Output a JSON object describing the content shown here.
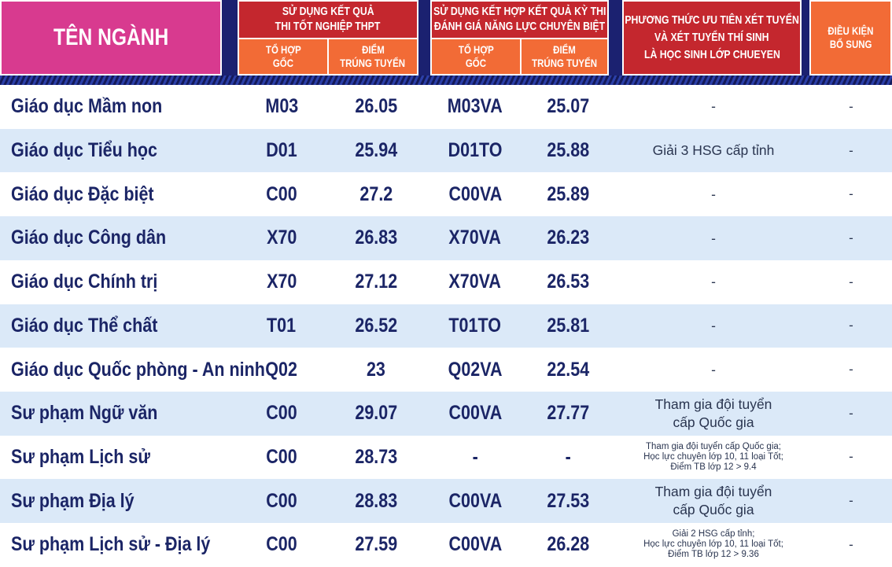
{
  "header": {
    "name_col": "TÊN NGÀNH",
    "group1": {
      "title": [
        "SỬ DỤNG KẾT QUẢ",
        "THI TỐT NGHIỆP THPT"
      ],
      "code": [
        "TỔ HỢP",
        "GỐC"
      ],
      "score": [
        "ĐIỂM",
        "TRÚNG TUYỂN"
      ]
    },
    "group2": {
      "title": [
        "SỬ DỤNG KẾT HỢP KẾT QUẢ KỲ THI",
        "ĐÁNH GIÁ NĂNG LỰC CHUYÊN BIỆT"
      ],
      "code": [
        "TỔ HỢP",
        "GỐC"
      ],
      "score": [
        "ĐIỂM",
        "TRÚNG TUYỂN"
      ]
    },
    "priority": [
      "PHƯƠNG THỨC ƯU TIÊN XÉT TUYỂN",
      "VÀ XÉT TUYỂN THÍ SINH",
      "LÀ HỌC SINH LỚP CHUEYEN"
    ],
    "extra": [
      "ĐIỀU KIỆN",
      "BỔ SUNG"
    ]
  },
  "table": {
    "rows": [
      {
        "name": "Giáo dục Mầm non",
        "code1": "M03",
        "score1": "26.05",
        "code2": "M03VA",
        "score2": "25.07",
        "note": [
          "-"
        ],
        "extra": "-"
      },
      {
        "name": "Giáo dục Tiểu học",
        "code1": "D01",
        "score1": "25.94",
        "code2": "D01TO",
        "score2": "25.88",
        "note": [
          "Giải 3 HSG cấp tỉnh"
        ],
        "extra": "-"
      },
      {
        "name": "Giáo dục Đặc biệt",
        "code1": "C00",
        "score1": "27.2",
        "code2": "C00VA",
        "score2": "25.89",
        "note": [
          "-"
        ],
        "extra": "-"
      },
      {
        "name": "Giáo dục Công dân",
        "code1": "X70",
        "score1": "26.83",
        "code2": "X70VA",
        "score2": "26.23",
        "note": [
          "-"
        ],
        "extra": "-"
      },
      {
        "name": "Giáo dục Chính trị",
        "code1": "X70",
        "score1": "27.12",
        "code2": "X70VA",
        "score2": "26.53",
        "note": [
          "-"
        ],
        "extra": "-"
      },
      {
        "name": "Giáo dục Thể chất",
        "code1": "T01",
        "score1": "26.52",
        "code2": "T01TO",
        "score2": "25.81",
        "note": [
          "-"
        ],
        "extra": "-"
      },
      {
        "name": "Giáo dục Quốc phòng - An ninh",
        "code1": "Q02",
        "score1": "23",
        "code2": "Q02VA",
        "score2": "22.54",
        "note": [
          "-"
        ],
        "extra": "-"
      },
      {
        "name": "Sư phạm Ngữ văn",
        "code1": "C00",
        "score1": "29.07",
        "code2": "C00VA",
        "score2": "27.77",
        "note": [
          "Tham gia đội tuyển",
          "cấp Quốc gia"
        ],
        "extra": "-"
      },
      {
        "name": "Sư phạm Lịch sử",
        "code1": "C00",
        "score1": "28.73",
        "code2": "-",
        "score2": "-",
        "note": [
          "Tham gia đội tuyển cấp Quốc gia;",
          "Học lực chuyên lớp 10, 11 loại Tốt;",
          "Điểm TB lớp 12 > 9.4"
        ],
        "extra": "-"
      },
      {
        "name": "Sư phạm Địa lý",
        "code1": "C00",
        "score1": "28.83",
        "code2": "C00VA",
        "score2": "27.53",
        "note": [
          "Tham gia đội tuyển",
          "cấp Quốc gia"
        ],
        "extra": "-"
      },
      {
        "name": "Sư phạm Lịch sử - Địa lý",
        "code1": "C00",
        "score1": "27.59",
        "code2": "C00VA",
        "score2": "26.28",
        "note": [
          "Giải 2 HSG cấp tỉnh;",
          "Học lực chuyên lớp 10, 11 loại Tốt;",
          "Điểm TB lớp 12 > 9.36"
        ],
        "extra": "-"
      }
    ]
  }
}
